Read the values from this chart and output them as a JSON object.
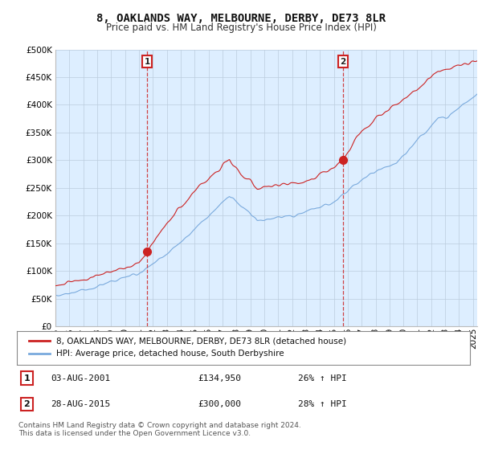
{
  "title": "8, OAKLANDS WAY, MELBOURNE, DERBY, DE73 8LR",
  "subtitle": "Price paid vs. HM Land Registry's House Price Index (HPI)",
  "ytick_values": [
    0,
    50000,
    100000,
    150000,
    200000,
    250000,
    300000,
    350000,
    400000,
    450000,
    500000
  ],
  "ylim": [
    0,
    500000
  ],
  "xlim_start": 1995.0,
  "xlim_end": 2025.3,
  "sale1_date": 2001.58,
  "sale1_price": 134950,
  "sale2_date": 2015.65,
  "sale2_price": 300000,
  "red_line_color": "#cc2222",
  "blue_line_color": "#7aaadd",
  "chart_bg_color": "#ddeeff",
  "annotation_box_color": "#cc2222",
  "grid_color": "#bbccdd",
  "background_color": "#ffffff",
  "legend_label_red": "8, OAKLANDS WAY, MELBOURNE, DERBY, DE73 8LR (detached house)",
  "legend_label_blue": "HPI: Average price, detached house, South Derbyshire",
  "table_row1": [
    "1",
    "03-AUG-2001",
    "£134,950",
    "26% ↑ HPI"
  ],
  "table_row2": [
    "2",
    "28-AUG-2015",
    "£300,000",
    "28% ↑ HPI"
  ],
  "footer": "Contains HM Land Registry data © Crown copyright and database right 2024.\nThis data is licensed under the Open Government Licence v3.0.",
  "title_fontsize": 10,
  "subtitle_fontsize": 8.5,
  "tick_fontsize": 7.5,
  "legend_fontsize": 7.5,
  "table_fontsize": 8,
  "footer_fontsize": 6.5
}
